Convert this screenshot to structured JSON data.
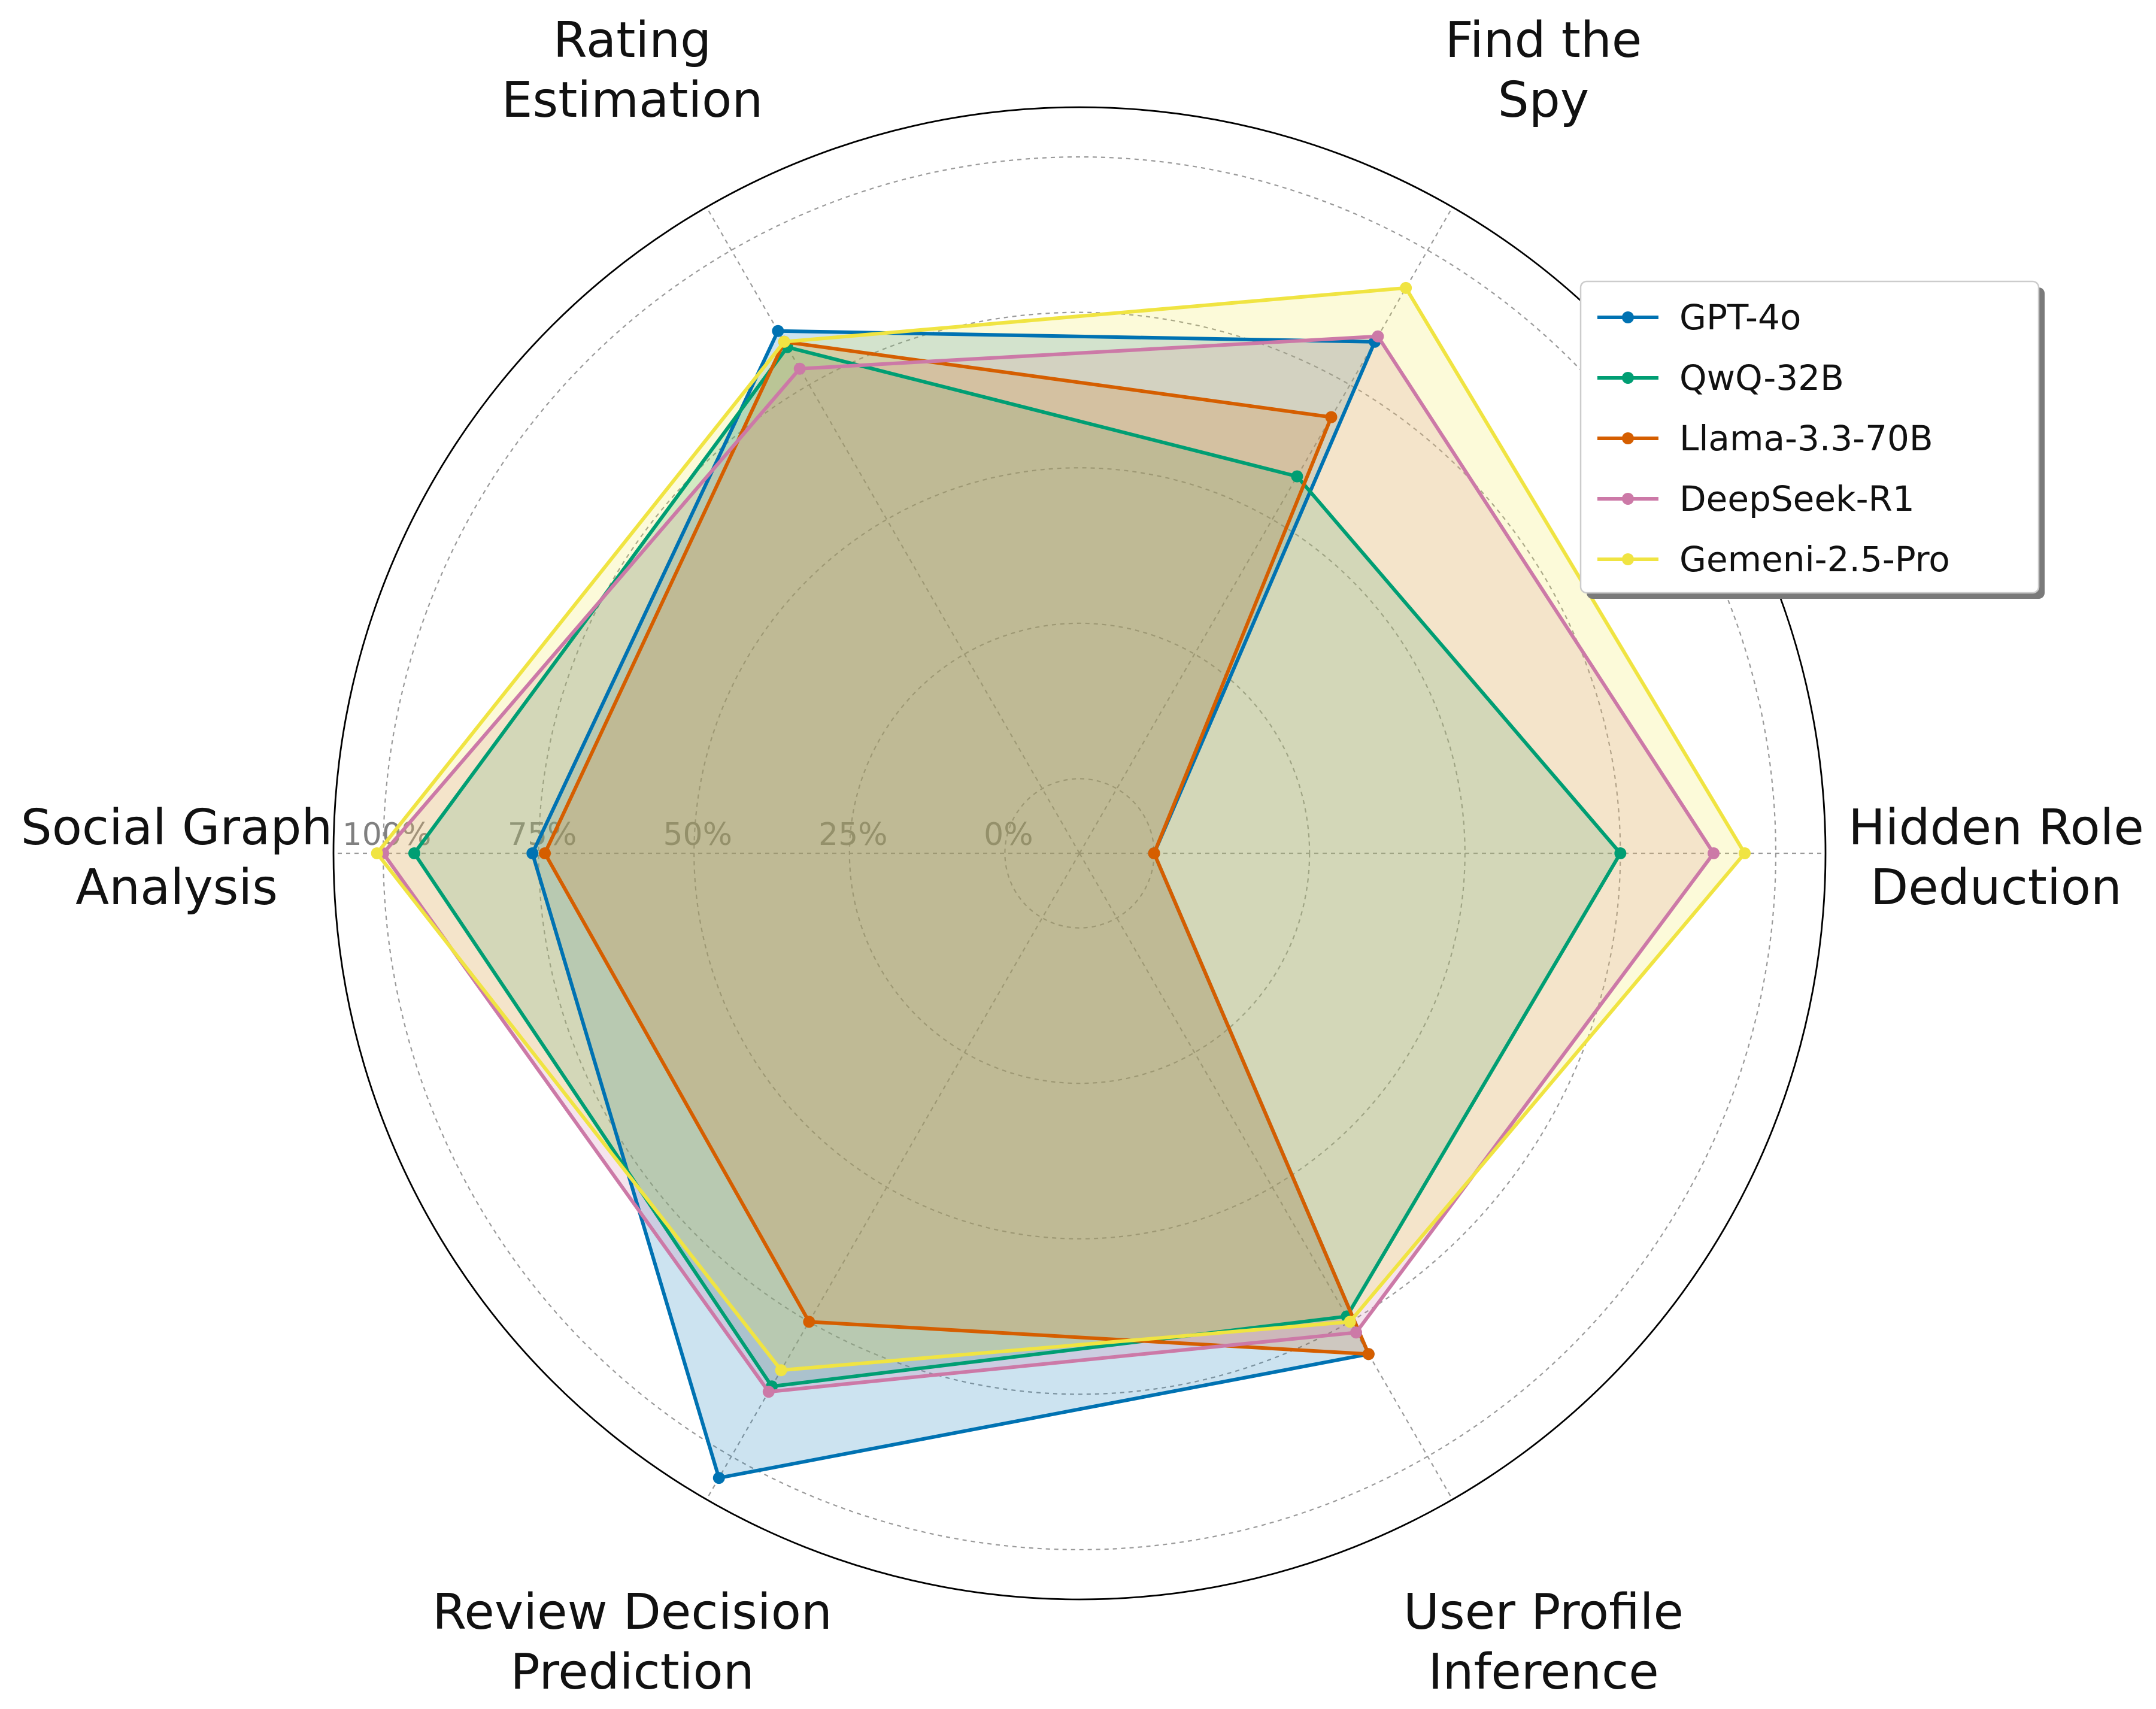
{
  "chart_data": {
    "type": "radar",
    "title": "",
    "axes": [
      [
        "Hidden Role",
        "Deduction"
      ],
      [
        "Find the",
        "Spy"
      ],
      [
        "Rating",
        "Estimation"
      ],
      [
        "Social Graph",
        "Analysis"
      ],
      [
        "Review Decision",
        "Prediction"
      ],
      [
        "User Profile",
        "Inference"
      ]
    ],
    "r_ticks": [
      "0%",
      "25%",
      "50%",
      "75%",
      "100%"
    ],
    "r_range": [
      -12,
      108
    ],
    "grid": true,
    "legend_position": "top-right",
    "series": [
      {
        "name": "GPT-4o",
        "color": "#0072B2",
        "values": [
          0,
          83,
          85,
          76,
          104,
          81
        ]
      },
      {
        "name": "QwQ-32B",
        "color": "#009E73",
        "values": [
          75,
          58,
          82,
          95,
          87,
          74
        ]
      },
      {
        "name": "Llama-3.3-70B",
        "color": "#D55E00",
        "values": [
          0,
          69,
          83,
          74,
          75,
          81
        ]
      },
      {
        "name": "DeepSeek-R1",
        "color": "#CC79A7",
        "values": [
          90,
          84,
          78,
          100,
          88,
          77
        ]
      },
      {
        "name": "Gemeni-2.5-Pro",
        "color": "#F0E442",
        "values": [
          95,
          93,
          83,
          101,
          84,
          75
        ]
      }
    ]
  }
}
